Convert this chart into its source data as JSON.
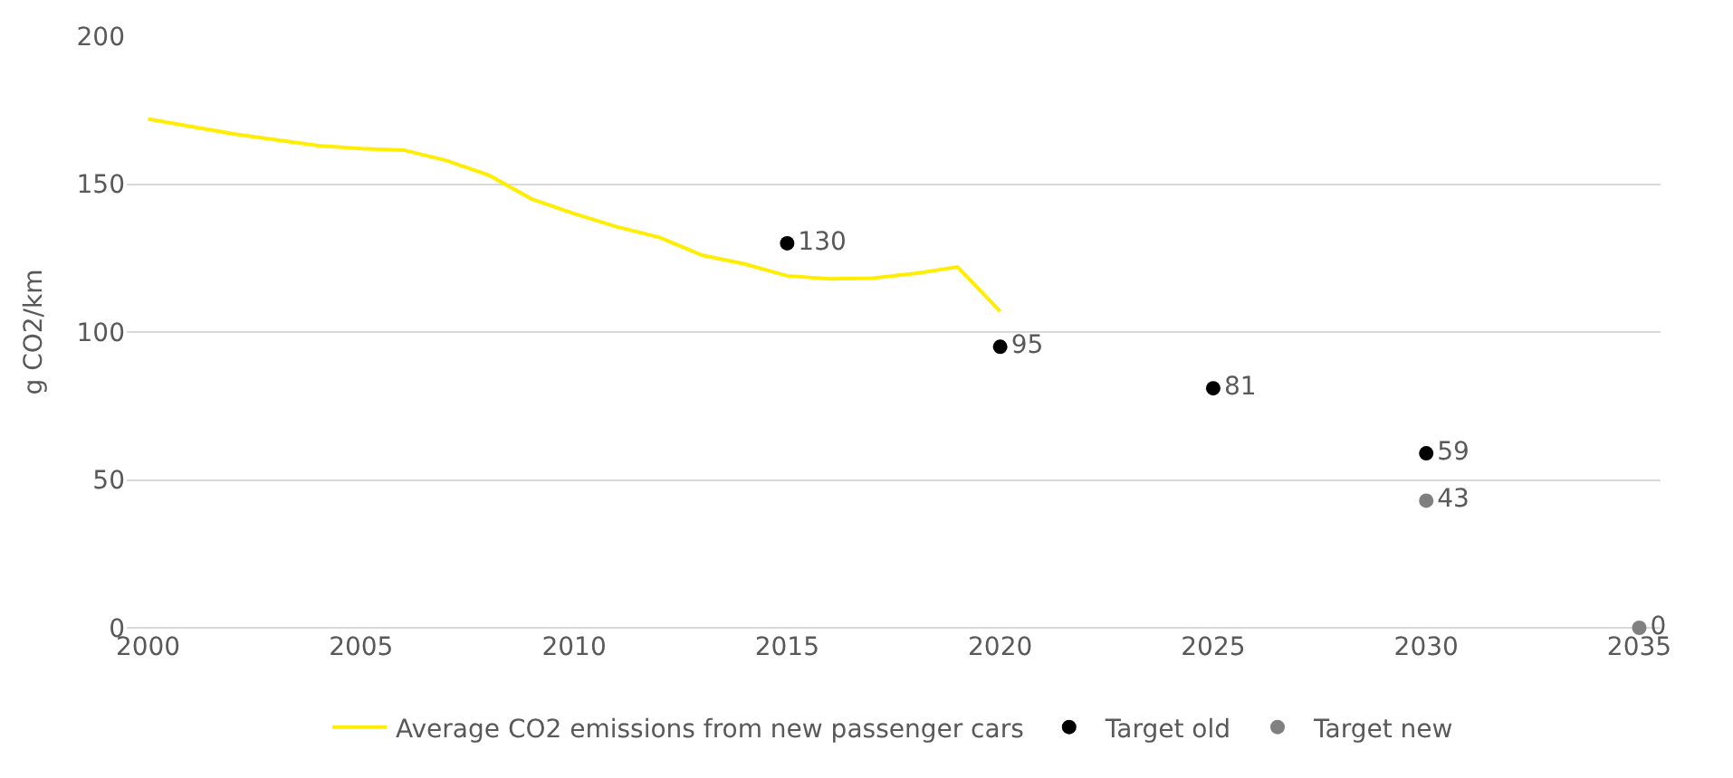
{
  "chart_data": {
    "type": "line",
    "ylabel": "g CO2/km",
    "xlim": [
      1999.5,
      2035.5
    ],
    "xticks": [
      2000,
      2005,
      2010,
      2015,
      2020,
      2025,
      2030,
      2035
    ],
    "ylim": [
      0,
      200
    ],
    "yticks": [
      0,
      50,
      100,
      150,
      200
    ],
    "grid": "y",
    "legend": "bottom",
    "series": [
      {
        "name": "Average CO2 emissions from new passenger cars",
        "color": "#ffee00",
        "marker": "none",
        "x": [
          2000,
          2001,
          2002,
          2003,
          2004,
          2005,
          2006,
          2007,
          2008,
          2009,
          2010,
          2011,
          2012,
          2013,
          2014,
          2015,
          2016,
          2017,
          2018,
          2019,
          2020
        ],
        "values": [
          172,
          169.5,
          167,
          165,
          163,
          162,
          161.5,
          158,
          153,
          145,
          140,
          135.6,
          132,
          126,
          123,
          119,
          118,
          118.2,
          119.8,
          122,
          107
        ]
      },
      {
        "name": "Target old",
        "color": "#000000",
        "type": "scatter",
        "marker": "circle",
        "x": [
          2015,
          2020,
          2025,
          2030
        ],
        "values": [
          130,
          95,
          81,
          59
        ],
        "value_labels": [
          "130",
          "95",
          "81",
          "59"
        ]
      },
      {
        "name": "Target new",
        "color": "#808080",
        "type": "scatter",
        "marker": "circle",
        "x": [
          2030,
          2035
        ],
        "values": [
          43,
          0
        ],
        "value_labels": [
          "43",
          "0"
        ]
      }
    ]
  }
}
